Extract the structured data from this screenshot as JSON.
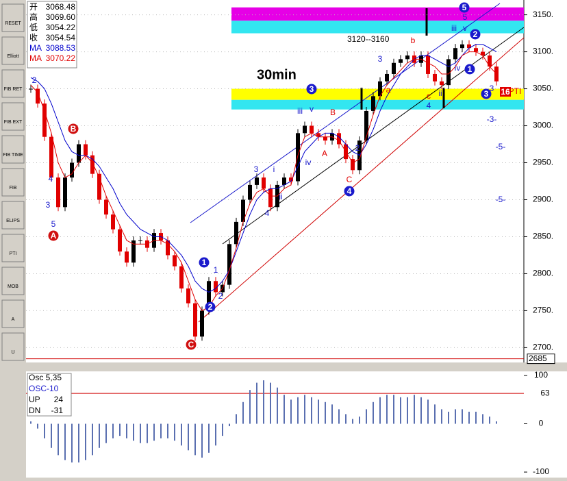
{
  "toolbar": {
    "buttons": [
      "RESET",
      "Elliott",
      "FIB RET",
      "FIB EXT",
      "FIB TIME",
      "FIB",
      "ELIPS",
      "PTI",
      "MOB",
      "A",
      "U"
    ]
  },
  "quote": {
    "rows": [
      {
        "label": "开",
        "value": 3068.48
      },
      {
        "label": "高",
        "value": 3069.6,
        "value_label": "3069.60"
      },
      {
        "label": "低",
        "value": 3054.22
      },
      {
        "label": "收",
        "value": 3054.54
      }
    ],
    "ma": [
      {
        "label": "MA",
        "value": 3088.53,
        "color": "#0000cc"
      },
      {
        "label": "MA",
        "value": 3070.22,
        "color": "#e00000"
      }
    ]
  },
  "chart_data": [
    {
      "type": "candlestick",
      "title": "30min",
      "subtitle": "3120--3160",
      "values": [
        3050,
        3030,
        2985,
        2930,
        2890,
        2930,
        2950,
        2975,
        2960,
        2935,
        2900,
        2880,
        2860,
        2830,
        2815,
        2845,
        2845,
        2835,
        2855,
        2845,
        2825,
        2810,
        2780,
        2760,
        2715,
        2750,
        2790,
        2775,
        2785,
        2840,
        2870,
        2900,
        2920,
        2930,
        2915,
        2890,
        2920,
        2930,
        2925,
        2990,
        3000,
        2990,
        2985,
        2980,
        2990,
        2975,
        2955,
        2940,
        2980,
        3020,
        3040,
        3060,
        3070,
        3085,
        3090,
        3095,
        3085,
        3095,
        3070,
        3060,
        3055,
        3090,
        3105,
        3110,
        3105,
        3100,
        3095,
        3080,
        3060
      ],
      "up_color": "#000000",
      "down_color": "#e00000",
      "series": [
        {
          "color": "#0000cc",
          "values": [
            3065,
            3060,
            3050,
            3030,
            3005,
            2980,
            2965,
            2960,
            2960,
            2955,
            2945,
            2930,
            2915,
            2895,
            2880,
            2870,
            2860,
            2855,
            2850,
            2850,
            2845,
            2835,
            2825,
            2810,
            2790,
            2780,
            2775,
            2780,
            2790,
            2805,
            2830,
            2855,
            2880,
            2900,
            2910,
            2915,
            2915,
            2920,
            2925,
            2945,
            2965,
            2975,
            2985,
            2990,
            2990,
            2985,
            2975,
            2965,
            2960,
            2975,
            2995,
            3020,
            3040,
            3055,
            3070,
            3080,
            3090,
            3095,
            3095,
            3090,
            3085,
            3080,
            3085,
            3095,
            3105,
            3110,
            3110,
            3105,
            3100
          ]
        },
        {
          "color": "#e00000",
          "values": [
            3055,
            3045,
            3020,
            2990,
            2950,
            2930,
            2935,
            2950,
            2960,
            2950,
            2930,
            2905,
            2885,
            2865,
            2845,
            2840,
            2840,
            2840,
            2845,
            2845,
            2840,
            2830,
            2815,
            2790,
            2765,
            2750,
            2755,
            2770,
            2780,
            2805,
            2835,
            2870,
            2895,
            2910,
            2915,
            2905,
            2905,
            2915,
            2920,
            2960,
            2985,
            2990,
            2985,
            2985,
            2985,
            2980,
            2965,
            2950,
            2955,
            2985,
            3015,
            3040,
            3055,
            3065,
            3075,
            3085,
            3090,
            3090,
            3085,
            3080,
            3070,
            3070,
            3080,
            3095,
            3100,
            3100,
            3095,
            3080,
            3070
          ]
        }
      ],
      "zones": [
        {
          "from": 3160,
          "to": 3142,
          "color": "#e600e6"
        },
        {
          "from": 3142,
          "to": 3125,
          "color": "#33e6f0"
        },
        {
          "from": 3050,
          "to": 3035,
          "color": "#ffff00"
        },
        {
          "from": 3035,
          "to": 3022,
          "color": "#33e6f0"
        }
      ],
      "ylim": [
        2680,
        3170
      ],
      "yticks": [
        {
          "value": 3150,
          "label": "3150."
        },
        {
          "value": 3100,
          "label": "3100."
        },
        {
          "value": 3050,
          "label": "3050."
        },
        {
          "value": 3000,
          "label": "3000."
        },
        {
          "value": 2950,
          "label": "2950."
        },
        {
          "value": 2900,
          "label": "2900."
        },
        {
          "value": 2850,
          "label": "2850."
        },
        {
          "value": 2800,
          "label": "2800."
        },
        {
          "value": 2750,
          "label": "2750."
        },
        {
          "value": 2700,
          "label": "2700."
        }
      ],
      "grid": true,
      "cursor_price": 2685,
      "annotations": [
        "2",
        "4",
        "3",
        "5",
        "1",
        "2",
        "3",
        "i",
        "ii",
        "4",
        "iii",
        "v",
        "iv",
        "B",
        "A",
        "2",
        "C",
        "3",
        "b",
        "a",
        "c",
        "4",
        "ii",
        "5",
        "iii",
        "v",
        "iv",
        "3",
        "-3-",
        "-5-",
        "-5-",
        "PTI"
      ],
      "wave_markers": [
        "5",
        "3",
        "B",
        "A",
        "1",
        "2",
        "C",
        "4",
        "2",
        "1",
        "3",
        "16"
      ]
    },
    {
      "type": "histogram-oscillator",
      "title": "Osc 5,35",
      "subtitle": "OSC-10",
      "stats": [
        {
          "label": "UP",
          "value": 24
        },
        {
          "label": "DN",
          "value": -31
        }
      ],
      "values": [
        5,
        -10,
        -30,
        -50,
        -65,
        -75,
        -80,
        -80,
        -75,
        -65,
        -50,
        -40,
        -30,
        -25,
        -30,
        -35,
        -40,
        -40,
        -35,
        -30,
        -30,
        -35,
        -45,
        -55,
        -65,
        -70,
        -60,
        -45,
        -25,
        -5,
        20,
        45,
        70,
        85,
        90,
        85,
        75,
        60,
        50,
        55,
        60,
        55,
        50,
        45,
        40,
        30,
        20,
        10,
        15,
        30,
        45,
        55,
        60,
        60,
        55,
        55,
        60,
        55,
        50,
        40,
        30,
        25,
        30,
        30,
        25,
        25,
        20,
        15,
        5
      ],
      "color": "#5a6fb0",
      "ref_line": 63,
      "ylim": [
        -100,
        100
      ],
      "yticks": [
        100,
        0,
        -100
      ]
    }
  ]
}
